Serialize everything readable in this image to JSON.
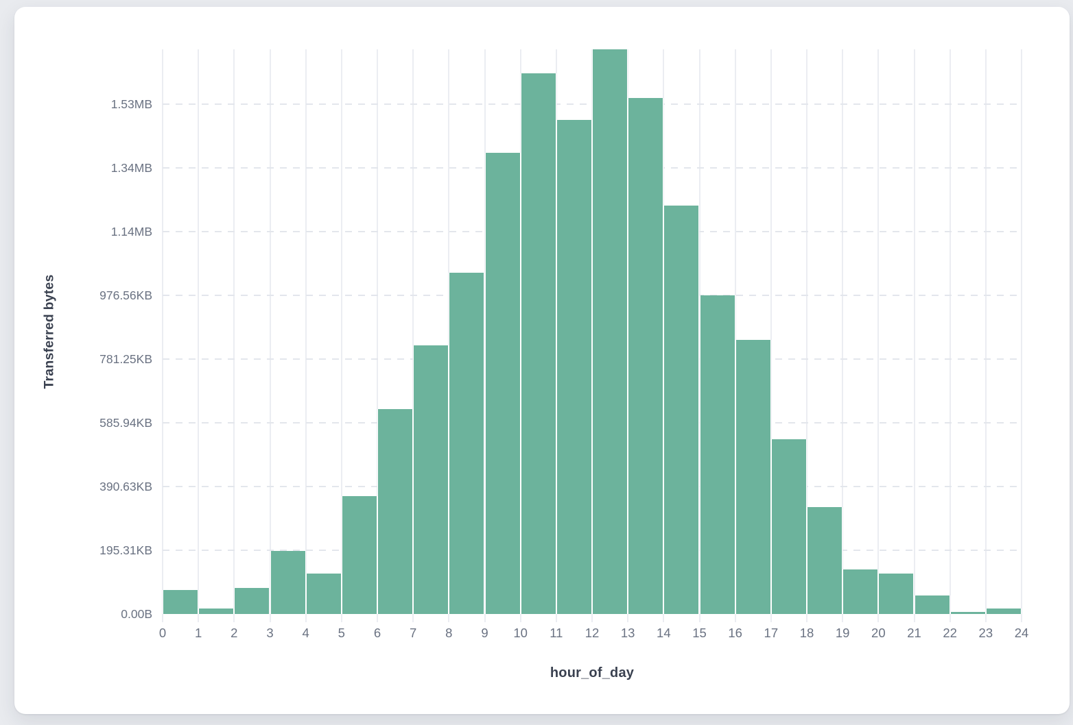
{
  "chart_data": {
    "type": "bar",
    "title": "",
    "xlabel": "hour_of_day",
    "ylabel": "Transferred bytes",
    "x_tick_labels": [
      "0",
      "1",
      "2",
      "3",
      "4",
      "5",
      "6",
      "7",
      "8",
      "9",
      "10",
      "11",
      "12",
      "13",
      "14",
      "15",
      "16",
      "17",
      "18",
      "19",
      "20",
      "21",
      "22",
      "23",
      "24"
    ],
    "hours": [
      0,
      1,
      2,
      3,
      4,
      5,
      6,
      7,
      8,
      9,
      10,
      11,
      12,
      13,
      14,
      15,
      16,
      17,
      18,
      19,
      20,
      21,
      22,
      23
    ],
    "values_bytes": [
      75000,
      17000,
      82000,
      198000,
      127000,
      369000,
      644000,
      842000,
      1072000,
      1448000,
      1697000,
      1551000,
      1772000,
      1620000,
      1282000,
      1001000,
      861000,
      548000,
      335000,
      140000,
      127000,
      58000,
      6400,
      17200
    ],
    "y_ticks": [
      {
        "label": "0.00B",
        "bytes": 0
      },
      {
        "label": "195.31KB",
        "bytes": 200000
      },
      {
        "label": "390.63KB",
        "bytes": 400000
      },
      {
        "label": "585.94KB",
        "bytes": 600000
      },
      {
        "label": "781.25KB",
        "bytes": 800000
      },
      {
        "label": "976.56KB",
        "bytes": 1000000
      },
      {
        "label": "1.14MB",
        "bytes": 1200000
      },
      {
        "label": "1.34MB",
        "bytes": 1400000
      },
      {
        "label": "1.53MB",
        "bytes": 1600000
      }
    ],
    "ylim": [
      0,
      1772000
    ],
    "bin_width_hours": 1,
    "grid": true,
    "legend": false
  },
  "colors": {
    "bar_fill": "#6cb39c",
    "vertical_gridline": "#ebedf2",
    "horizontal_gridline": "#e3e6ec",
    "tick_label": "#6a7282",
    "axis_title": "#3a4150",
    "card_background": "#ffffff",
    "page_background": "#e9ebef"
  }
}
